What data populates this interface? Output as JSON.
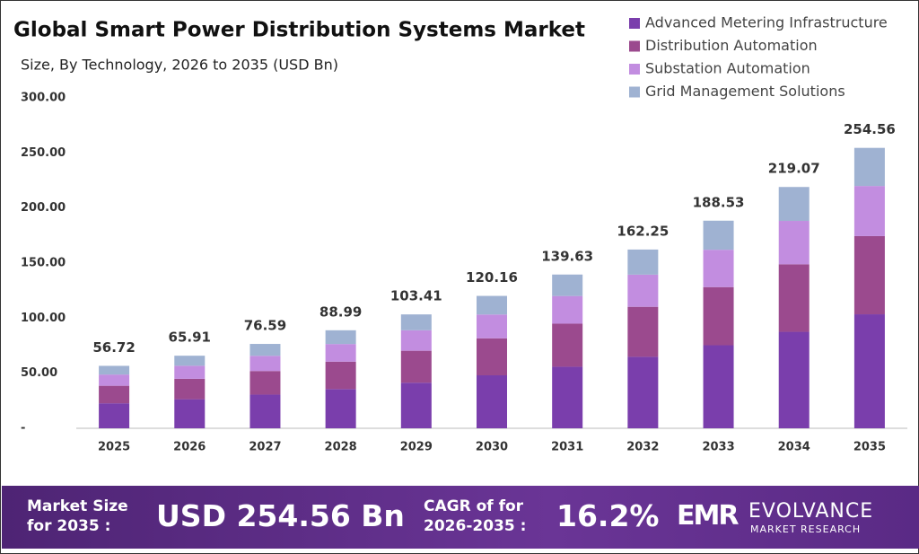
{
  "chart_data": {
    "type": "stacked_bar",
    "title": "Global Smart Power Distribution Systems Market",
    "subtitle": "Size, By Technology, 2026 to 2035 (USD Bn)",
    "categories": [
      "2025",
      "2026",
      "2027",
      "2028",
      "2029",
      "2030",
      "2031",
      "2032",
      "2033",
      "2034",
      "2035"
    ],
    "series": [
      {
        "name": "Advanced Metering Infrastructure",
        "color": "#7a3eac",
        "values": [
          22.7,
          26.4,
          30.6,
          35.6,
          41.4,
          48.1,
          55.9,
          64.9,
          75.4,
          87.6,
          103.5
        ]
      },
      {
        "name": "Distribution Automation",
        "color": "#9b4a8e",
        "values": [
          15.9,
          18.5,
          21.4,
          24.9,
          29.0,
          33.6,
          39.1,
          45.4,
          52.8,
          61.3,
          71.0
        ]
      },
      {
        "name": "Substation Automation",
        "color": "#c28de0",
        "values": [
          10.2,
          11.9,
          13.8,
          16.0,
          18.6,
          21.6,
          25.1,
          29.2,
          33.9,
          39.4,
          45.5
        ]
      },
      {
        "name": "Grid Management Solutions",
        "color": "#9fb2d2",
        "values": [
          7.9,
          9.1,
          10.8,
          12.5,
          14.4,
          16.9,
          19.5,
          22.8,
          26.4,
          30.8,
          34.6
        ]
      }
    ],
    "totals": [
      56.72,
      65.91,
      76.59,
      88.99,
      103.41,
      120.16,
      139.63,
      162.25,
      188.53,
      219.07,
      254.56
    ],
    "ylim": [
      0,
      300
    ],
    "yticks": [
      {
        "value": 0,
        "label": "-"
      },
      {
        "value": 50,
        "label": "50.00"
      },
      {
        "value": 100,
        "label": "100.00"
      },
      {
        "value": 150,
        "label": "150.00"
      },
      {
        "value": 200,
        "label": "200.00"
      },
      {
        "value": 250,
        "label": "250.00"
      },
      {
        "value": 300,
        "label": "300.00"
      }
    ],
    "legend": "top-right"
  },
  "footer": {
    "size_label": [
      "Market Size",
      "for 2035 :"
    ],
    "size_value": "USD 254.56 Bn",
    "cagr_label": [
      "CAGR of for",
      "2026-2035 :"
    ],
    "cagr_value": "16.2%",
    "logo_mark": "EMR",
    "logo_name": "EVOLVANCE",
    "logo_sub": "MARKET RESEARCH"
  }
}
